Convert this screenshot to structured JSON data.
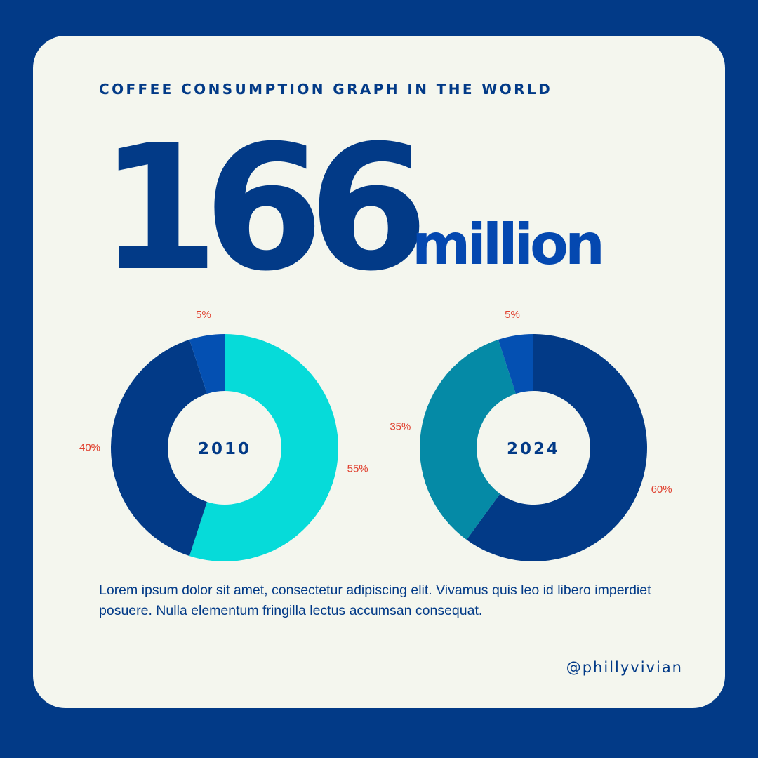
{
  "header": {
    "title": "COFFEE CONSUMPTION GRAPH IN THE WORLD",
    "big_number": "166",
    "big_unit": "million"
  },
  "chart_data": [
    {
      "type": "pie",
      "center_label": "2010",
      "slices": [
        {
          "value": 55,
          "label": "55%",
          "color": "#06dbd9"
        },
        {
          "value": 40,
          "label": "40%",
          "color": "#023a87"
        },
        {
          "value": 5,
          "label": "5%",
          "color": "#0450b2"
        }
      ]
    },
    {
      "type": "pie",
      "center_label": "2024",
      "slices": [
        {
          "value": 60,
          "label": "60%",
          "color": "#023a87"
        },
        {
          "value": 35,
          "label": "35%",
          "color": "#058aa6"
        },
        {
          "value": 5,
          "label": "5%",
          "color": "#0450b2"
        }
      ]
    }
  ],
  "description": "Lorem ipsum dolor sit amet, consectetur adipiscing elit. Vivamus quis leo id libero imperdiet posuere. Nulla elementum fringilla lectus accumsan consequat.",
  "handle": "@phillyvivian",
  "colors": {
    "background": "#023a87",
    "card": "#f4f6ee",
    "label_red": "#e0402e",
    "accent_blue": "#0448b0"
  }
}
